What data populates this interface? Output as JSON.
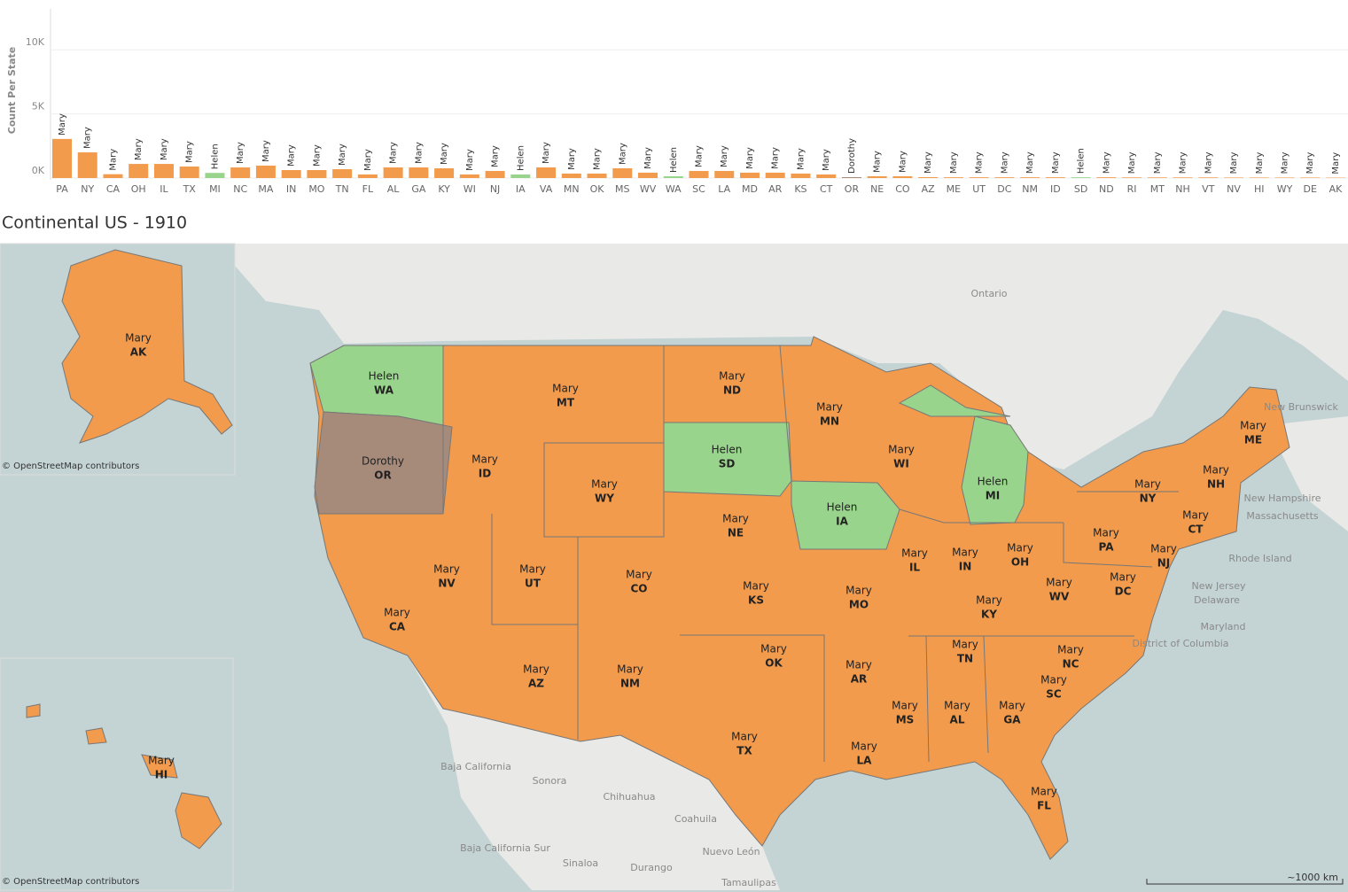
{
  "chart_data": {
    "type": "bar",
    "y_label": "Count Per State",
    "categories": [
      "PA",
      "NY",
      "CA",
      "OH",
      "IL",
      "TX",
      "MI",
      "NC",
      "MA",
      "IN",
      "MO",
      "TN",
      "FL",
      "AL",
      "GA",
      "KY",
      "WI",
      "NJ",
      "IA",
      "VA",
      "MN",
      "OK",
      "MS",
      "WV",
      "WA",
      "SC",
      "LA",
      "MD",
      "AR",
      "KS",
      "CT",
      "OR",
      "NE",
      "CO",
      "AZ",
      "ME",
      "UT",
      "DC",
      "NM",
      "ID",
      "SD",
      "ND",
      "RI",
      "MT",
      "NH",
      "VT",
      "NV",
      "HI",
      "WY",
      "DE",
      "AK"
    ],
    "values": [
      3050,
      2000,
      300,
      1100,
      1100,
      900,
      400,
      830,
      970,
      620,
      620,
      690,
      280,
      830,
      830,
      760,
      280,
      550,
      280,
      830,
      350,
      350,
      760,
      420,
      140,
      550,
      550,
      420,
      420,
      350,
      280,
      70,
      140,
      140,
      70,
      60,
      60,
      60,
      60,
      60,
      60,
      60,
      50,
      50,
      50,
      50,
      40,
      40,
      40,
      40,
      30
    ],
    "name_labels": [
      "Mary",
      "Mary",
      "Mary",
      "Mary",
      "Mary",
      "Mary",
      "Helen",
      "Mary",
      "Mary",
      "Mary",
      "Mary",
      "Mary",
      "Mary",
      "Mary",
      "Mary",
      "Mary",
      "Mary",
      "Mary",
      "Helen",
      "Mary",
      "Mary",
      "Mary",
      "Mary",
      "Mary",
      "Helen",
      "Mary",
      "Mary",
      "Mary",
      "Mary",
      "Mary",
      "Mary",
      "Dorothy",
      "Mary",
      "Mary",
      "Mary",
      "Mary",
      "Mary",
      "Mary",
      "Mary",
      "Mary",
      "Helen",
      "Mary",
      "Mary",
      "Mary",
      "Mary",
      "Mary",
      "Mary",
      "Mary",
      "Mary",
      "Mary",
      "Mary"
    ],
    "colors": {
      "Mary": "#f29b4c",
      "Helen": "#98d48b",
      "Dorothy": "#a68b7b"
    },
    "ylim": [
      0,
      12500
    ],
    "yticks": [
      {
        "value": 0,
        "label": "0K"
      },
      {
        "value": 5000,
        "label": "5K"
      },
      {
        "value": 10000,
        "label": "10K"
      }
    ],
    "grid": true
  },
  "map": {
    "title": "Continental US - 1910",
    "place_labels": [
      "Ontario",
      "New Brunswick",
      "New Hampshire",
      "Massachusetts",
      "Rhode Island",
      "New Jersey",
      "Delaware",
      "Maryland",
      "District of Columbia",
      "Baja California",
      "Sonora",
      "Chihuahua",
      "Coahuila",
      "Nuevo León",
      "Tamaulipas",
      "Sinaloa",
      "Durango",
      "Baja California Sur"
    ],
    "attribution": "© OpenStreetMap contributors",
    "scale": "~1000 km"
  }
}
